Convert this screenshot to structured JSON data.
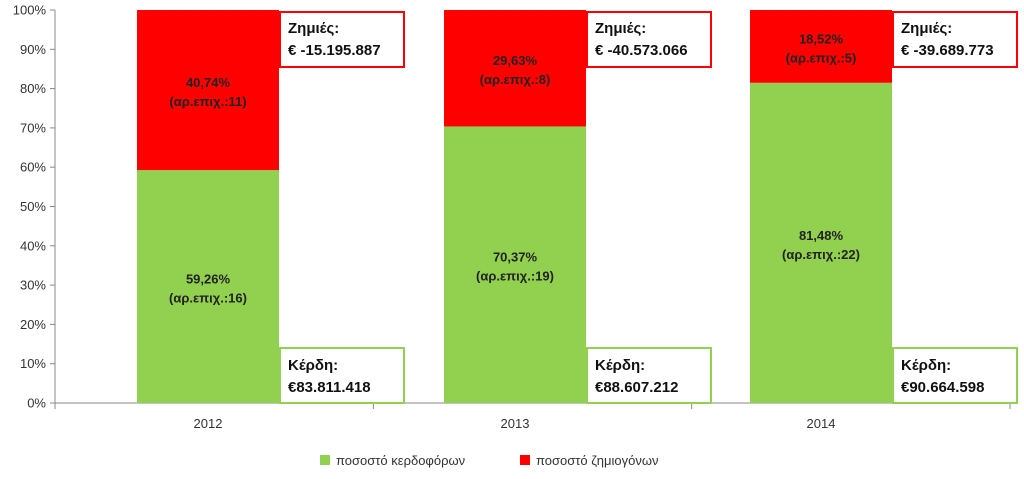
{
  "chart_data": {
    "type": "bar",
    "stacked": true,
    "categories": [
      "2012",
      "2013",
      "2014"
    ],
    "y_ticks": [
      "0%",
      "10%",
      "20%",
      "30%",
      "40%",
      "50%",
      "60%",
      "70%",
      "80%",
      "90%",
      "100%"
    ],
    "ylim": [
      0,
      100
    ],
    "grid": false,
    "legend_position": "bottom",
    "series": [
      {
        "name": "ποσοστό κερδοφόρων",
        "color": "#92d050",
        "values": [
          59.26,
          70.37,
          81.48
        ],
        "label_pct": [
          "59,26%",
          "70,37%",
          "81,48%"
        ],
        "label_count": [
          "(αρ.επιχ.:16)",
          "(αρ.επιχ.:19)",
          "(αρ.επιχ.:22)"
        ]
      },
      {
        "name": "ποσοστό ζημιογόνων",
        "color": "#ff0000",
        "values": [
          40.74,
          29.63,
          18.52
        ],
        "label_pct": [
          "40,74%",
          "29,63%",
          "18,52%"
        ],
        "label_count": [
          "(αρ.επιχ.:11)",
          "(αρ.επιχ.:8)",
          "(αρ.επιχ.:5)"
        ]
      }
    ],
    "callouts": {
      "losses": {
        "title": "Ζημιές:",
        "values": [
          "€ -15.195.887",
          "€ -40.573.066",
          "€ -39.689.773"
        ],
        "border_color": "#ff0000"
      },
      "profits": {
        "title": "Κέρδη:",
        "values": [
          "€83.811.418",
          "€88.607.212",
          "€90.664.598"
        ],
        "border_color": "#92d050"
      }
    }
  }
}
